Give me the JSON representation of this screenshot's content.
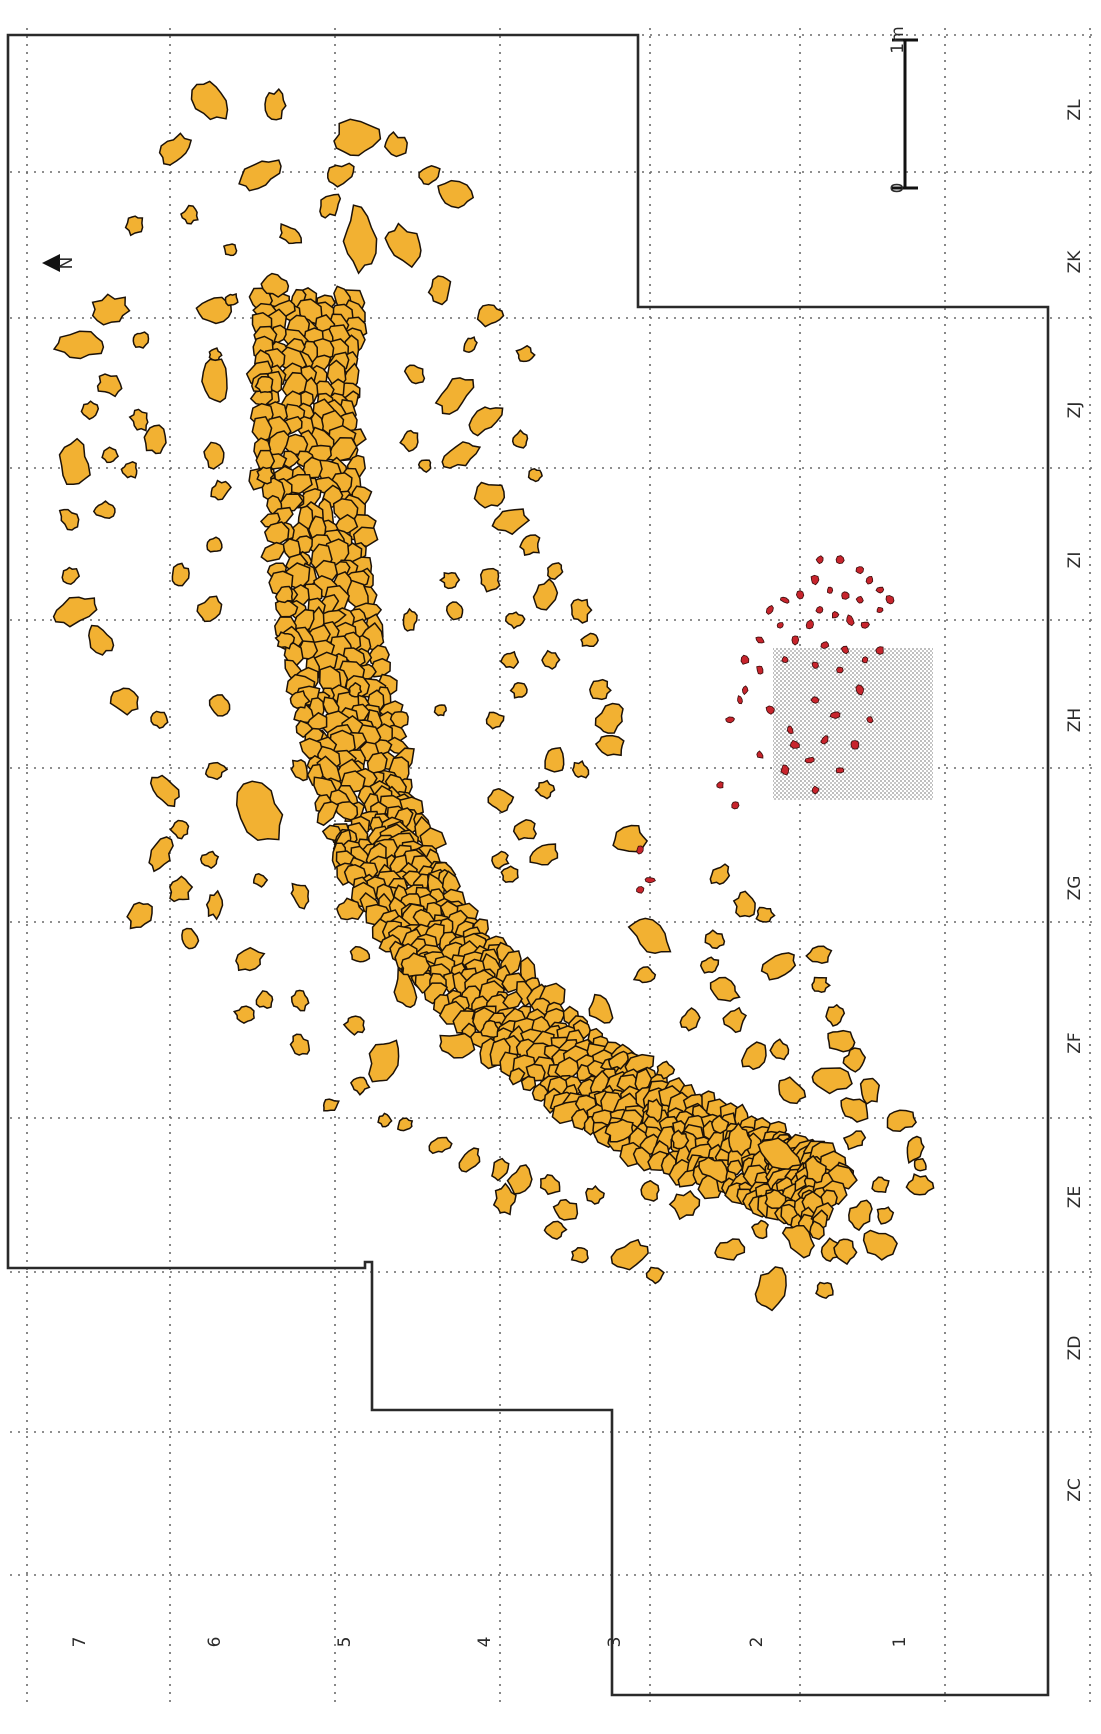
{
  "columns": [
    "ZC",
    "ZD",
    "ZE",
    "ZF",
    "ZG",
    "ZH",
    "ZI",
    "ZJ",
    "ZK",
    "ZL"
  ],
  "rows": [
    "1",
    "2",
    "3",
    "4",
    "5",
    "6",
    "7"
  ],
  "north_label": "N",
  "scale": {
    "start": "0",
    "end": "1m"
  },
  "colors": {
    "stone_fill": "#f2b132",
    "stone_outline": "#1c1208",
    "ochre_fill": "#c8242c",
    "hatched_area": "#8a8a8a",
    "excavation_boundary": "#2a2a2a",
    "grid": "#6a6a6a"
  }
}
